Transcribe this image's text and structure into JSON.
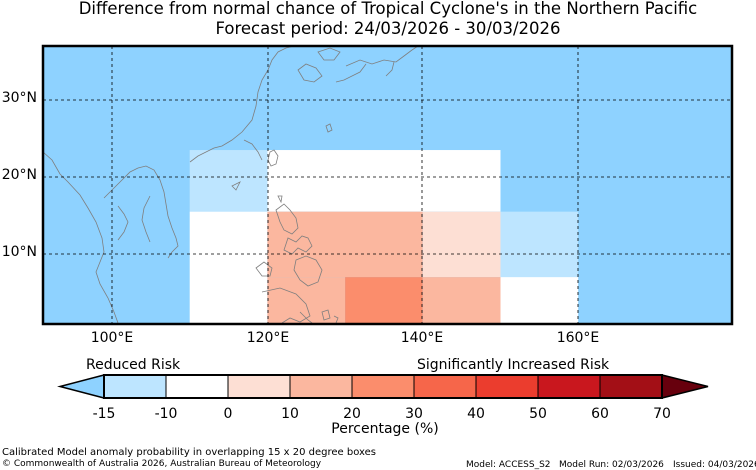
{
  "title": {
    "line1": "Difference from normal chance of Tropical Cyclone's in the Northern Pacific",
    "line2": "Forecast period: 24/03/2026 - 30/03/2026"
  },
  "map": {
    "lat_labels": [
      "30°N",
      "20°N",
      "10°N"
    ],
    "lon_labels": [
      "100°E",
      "120°E",
      "140°E",
      "160°E"
    ],
    "background_color": "#8ed2ff",
    "cells": [
      {
        "lon0": 110,
        "lon1": 120,
        "lat0": 15.5,
        "lat1": 23.5,
        "category": "-15 to -10",
        "color": "#bde5ff"
      },
      {
        "lon0": 120,
        "lon1": 150,
        "lat0": 15.5,
        "lat1": 23.5,
        "category": "-10 to 0",
        "color": "#ffffff"
      },
      {
        "lon0": 110,
        "lon1": 120,
        "lat0": 0,
        "lat1": 15.5,
        "category": "-10 to 0",
        "color": "#ffffff"
      },
      {
        "lon0": 120,
        "lon1": 140,
        "lat0": 7,
        "lat1": 15.5,
        "category": "10 to 20",
        "color": "#fbb79f"
      },
      {
        "lon0": 120,
        "lon1": 130,
        "lat0": 0,
        "lat1": 7,
        "category": "10 to 20",
        "color": "#fbb79f"
      },
      {
        "lon0": 140,
        "lon1": 150,
        "lat0": 7,
        "lat1": 15.5,
        "category": "0 to 10",
        "color": "#fddfd4"
      },
      {
        "lon0": 130,
        "lon1": 140,
        "lat0": 0,
        "lat1": 7,
        "category": "20 to 30",
        "color": "#fb8d6c"
      },
      {
        "lon0": 140,
        "lon1": 150,
        "lat0": 0,
        "lat1": 7,
        "category": "10 to 20",
        "color": "#fbb79f"
      },
      {
        "lon0": 150,
        "lon1": 160,
        "lat0": 7,
        "lat1": 15.5,
        "category": "-15 to -10",
        "color": "#bde5ff"
      },
      {
        "lon0": 150,
        "lon1": 160,
        "lat0": 0,
        "lat1": 7,
        "category": "-10 to 0",
        "color": "#ffffff"
      }
    ]
  },
  "legend": {
    "reduced_label": "Reduced Risk",
    "increased_label": "Significantly Increased Risk",
    "tick_labels": [
      "-15",
      "-10",
      "0",
      "10",
      "20",
      "30",
      "40",
      "50",
      "60",
      "70"
    ],
    "axis_label": "Percentage (%)",
    "colors": [
      "#bde5ff",
      "#ffffff",
      "#fddfd4",
      "#fbb79f",
      "#fb8d6c",
      "#f6664a",
      "#eb3d2e",
      "#c9171e",
      "#a30f16"
    ],
    "under_color": "#8ed2ff",
    "over_color": "#67000d"
  },
  "footer": {
    "note": "Calibrated Model anomaly probability in overlapping 15 x 20 degree boxes",
    "copyright": "© Commonwealth of Australia 2026, Australian Bureau of Meteorology",
    "model": "Model: ACCESS_S2",
    "model_run": "Model Run: 02/03/2026",
    "issued": "Issued: 04/03/2026"
  }
}
